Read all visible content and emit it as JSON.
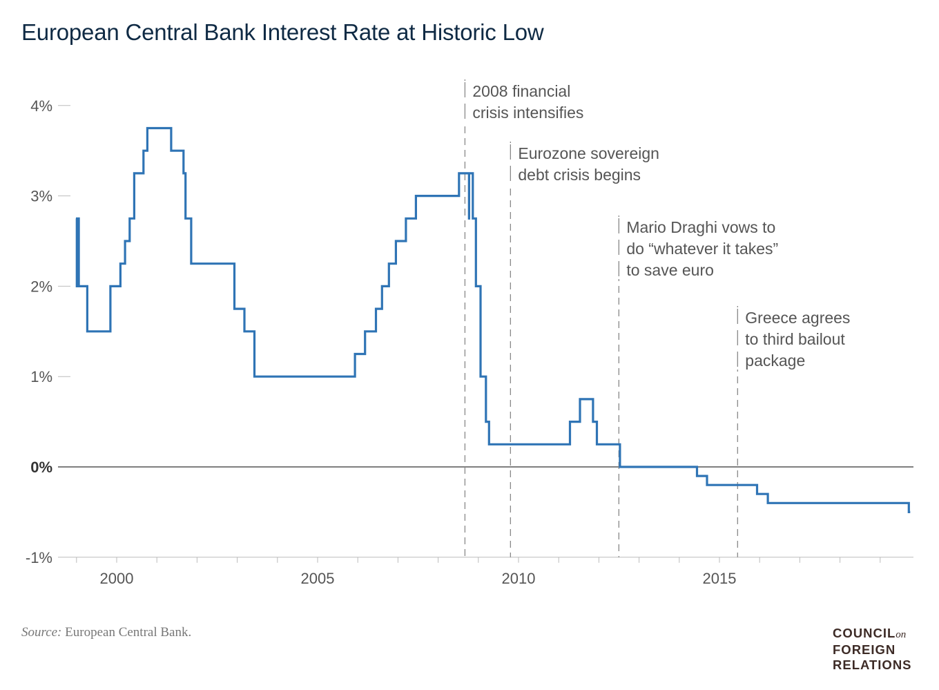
{
  "chart_data": {
    "type": "line",
    "title": "European Central Bank Interest Rate at Historic Low",
    "xlabel": "",
    "ylabel": "",
    "xlim": [
      "1998-11-15",
      "2019-12-31"
    ],
    "ylim": [
      -1,
      4
    ],
    "x_ticks": [
      "2000",
      "2005",
      "2010",
      "2015"
    ],
    "y_ticks": [
      {
        "value": 4,
        "label": "4%"
      },
      {
        "value": 3,
        "label": "3%"
      },
      {
        "value": 2,
        "label": "2%"
      },
      {
        "value": 1,
        "label": "1%"
      },
      {
        "value": 0,
        "label": "0%"
      },
      {
        "value": -1,
        "label": "-1%"
      }
    ],
    "line_color": "#2f74b5",
    "step_points": [
      [
        "1999-01-01",
        2.75
      ],
      [
        "1999-01-04",
        2.0
      ],
      [
        "1999-01-06",
        2.75
      ],
      [
        "1999-01-22",
        2.0
      ],
      [
        "1999-04-09",
        1.5
      ],
      [
        "1999-11-05",
        2.0
      ],
      [
        "2000-02-04",
        2.25
      ],
      [
        "2000-03-17",
        2.5
      ],
      [
        "2000-04-28",
        2.75
      ],
      [
        "2000-06-09",
        3.25
      ],
      [
        "2000-09-01",
        3.5
      ],
      [
        "2000-10-06",
        3.75
      ],
      [
        "2001-05-11",
        3.5
      ],
      [
        "2001-08-31",
        3.25
      ],
      [
        "2001-09-18",
        2.75
      ],
      [
        "2001-11-09",
        2.25
      ],
      [
        "2002-12-06",
        1.75
      ],
      [
        "2003-03-07",
        1.5
      ],
      [
        "2003-06-06",
        1.0
      ],
      [
        "2005-12-06",
        1.25
      ],
      [
        "2006-03-08",
        1.5
      ],
      [
        "2006-06-15",
        1.75
      ],
      [
        "2006-08-09",
        2.0
      ],
      [
        "2006-10-11",
        2.25
      ],
      [
        "2006-12-13",
        2.5
      ],
      [
        "2007-03-14",
        2.75
      ],
      [
        "2007-06-13",
        3.0
      ],
      [
        "2008-07-09",
        3.25
      ],
      [
        "2008-10-08",
        2.75
      ],
      [
        "2008-10-09",
        3.25
      ],
      [
        "2008-11-12",
        2.75
      ],
      [
        "2008-12-10",
        2.0
      ],
      [
        "2009-01-21",
        1.0
      ],
      [
        "2009-03-11",
        0.5
      ],
      [
        "2009-04-08",
        0.25
      ],
      [
        "2011-04-13",
        0.5
      ],
      [
        "2011-07-13",
        0.75
      ],
      [
        "2011-11-09",
        0.5
      ],
      [
        "2011-12-14",
        0.25
      ],
      [
        "2012-07-11",
        0.0
      ],
      [
        "2014-06-11",
        -0.1
      ],
      [
        "2014-09-10",
        -0.2
      ],
      [
        "2015-12-09",
        -0.3
      ],
      [
        "2016-03-16",
        -0.4
      ],
      [
        "2019-09-18",
        -0.5
      ],
      [
        "2019-10-01",
        -0.5
      ]
    ],
    "annotations": [
      {
        "date": "2008-09-01",
        "lines": [
          "2008 financial",
          "crisis intensifies"
        ]
      },
      {
        "date": "2009-10-20",
        "lines": [
          "Eurozone sovereign",
          "debt crisis begins"
        ]
      },
      {
        "date": "2012-07-01",
        "lines": [
          "Mario Draghi vows to",
          "do “whatever it takes”",
          "to save euro"
        ]
      },
      {
        "date": "2015-06-15",
        "lines": [
          "Greece agrees",
          "to third bailout",
          "package"
        ]
      }
    ],
    "grid": false
  },
  "footer": {
    "source_label": "Source:",
    "source_text": " European Central Bank.",
    "logo_lines": [
      "COUNCIL",
      "on",
      "FOREIGN",
      "RELATIONS"
    ]
  }
}
